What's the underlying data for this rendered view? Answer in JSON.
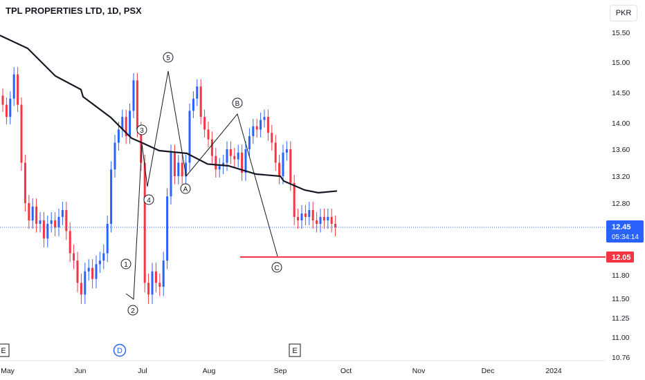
{
  "title": "TPL PROPERTIES LTD, 1D, PSX",
  "currency": "PKR",
  "colors": {
    "up": "#2962ff",
    "down": "#f23645",
    "ma": "#131722",
    "support": "#f23645",
    "current": "#2962ff",
    "axis_text": "#131722"
  },
  "price_axis_ticks": [
    "15.50",
    "15.00",
    "14.50",
    "14.00",
    "13.60",
    "13.20",
    "12.80",
    "12.45",
    "12.05",
    "11.80",
    "11.50",
    "11.25",
    "11.00",
    "10.76"
  ],
  "time_axis_ticks": [
    "May",
    "Jun",
    "Jul",
    "Aug",
    "Sep",
    "Oct",
    "Nov",
    "Dec",
    "2024"
  ],
  "current_price": {
    "value": "12.45",
    "countdown": "05:34:14"
  },
  "support_level": {
    "value": "12.05"
  },
  "wave_labels": [
    "1",
    "2",
    "3",
    "4",
    "5",
    "A",
    "B",
    "C"
  ],
  "event_markers": [
    "E",
    "D",
    "E"
  ],
  "chart_data": {
    "type": "candlestick",
    "title": "TPL PROPERTIES LTD, 1D, PSX",
    "y_ticks": [
      15.5,
      15.0,
      14.5,
      14.0,
      13.6,
      13.2,
      12.8,
      12.45,
      12.05,
      11.8,
      11.5,
      11.25,
      11.0,
      10.76
    ],
    "ylim": [
      10.76,
      15.7
    ],
    "x_ticks": [
      "May",
      "Jun",
      "Jul",
      "Aug",
      "Sep",
      "Oct",
      "Nov",
      "Dec",
      "2024"
    ],
    "closes": [
      14.3,
      14.1,
      14.4,
      14.8,
      14.3,
      13.4,
      12.8,
      12.55,
      12.75,
      12.5,
      12.55,
      12.3,
      12.5,
      12.55,
      12.45,
      12.6,
      12.7,
      12.4,
      12.1,
      12.0,
      11.7,
      11.55,
      11.85,
      11.9,
      11.75,
      11.95,
      12.0,
      12.1,
      12.5,
      13.3,
      13.7,
      13.9,
      14.1,
      13.8,
      14.2,
      14.7,
      13.9,
      13.4,
      11.7,
      11.55,
      11.85,
      11.7,
      11.65,
      12.0,
      12.9,
      13.55,
      13.2,
      13.4,
      13.2,
      13.4,
      14.2,
      14.4,
      14.6,
      14.1,
      13.9,
      13.75,
      13.5,
      13.3,
      13.35,
      13.4,
      13.6,
      13.5,
      13.45,
      13.55,
      13.25,
      13.6,
      13.8,
      13.95,
      13.9,
      14.05,
      14.1,
      13.85,
      13.7,
      13.4,
      13.2,
      13.55,
      13.6,
      13.1,
      12.6,
      12.55,
      12.65,
      12.6,
      12.7,
      12.55,
      12.5,
      12.6,
      12.55,
      12.6,
      12.5,
      12.45
    ],
    "moving_average": [
      {
        "label": "May",
        "value": 15.45
      },
      {
        "label": "Jun",
        "value": 14.55
      },
      {
        "label": "Jul",
        "value": 13.7
      },
      {
        "label": "Aug",
        "value": 13.38
      },
      {
        "label": "Sep",
        "value": 13.2
      },
      {
        "label": "end",
        "value": 12.98
      }
    ],
    "current_price": 12.45,
    "support_line": 12.05,
    "elliott_waves": {
      "impulse": [
        {
          "label": "1",
          "price": 11.76
        },
        {
          "label": "2",
          "price": 11.5
        },
        {
          "label": "3",
          "price": 13.7
        },
        {
          "label": "4",
          "price": 13.0
        },
        {
          "label": "5",
          "price": 14.85
        }
      ],
      "correction": [
        {
          "label": "A",
          "price": 13.2
        },
        {
          "label": "B",
          "price": 14.1
        },
        {
          "label": "C",
          "price": 12.05
        }
      ]
    }
  }
}
